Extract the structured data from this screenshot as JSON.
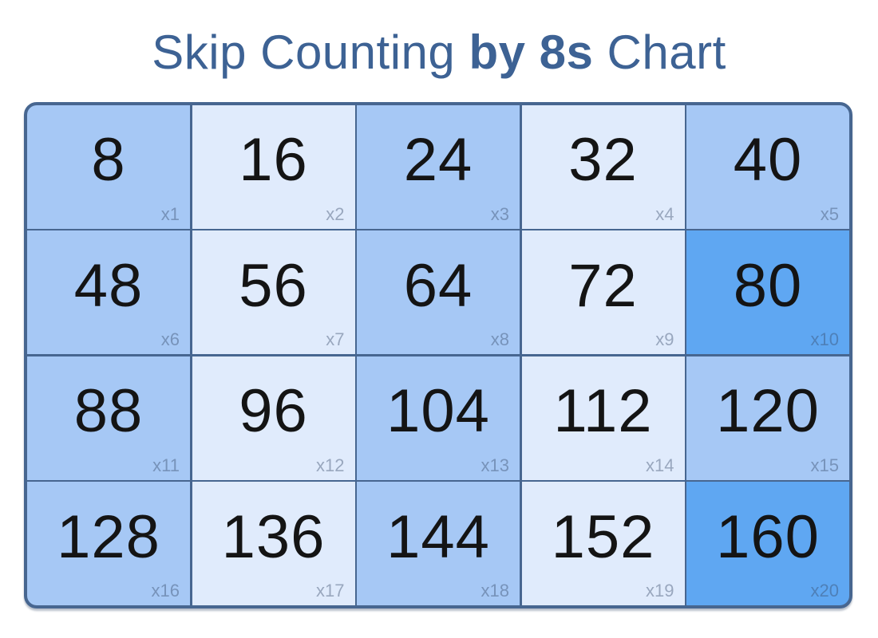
{
  "title": {
    "part1": "Skip Counting ",
    "part2": "by 8s",
    "part3": " Chart"
  },
  "colors": {
    "page_background": "#ffffff",
    "title_text": "#3d6294",
    "cell_medium": "#a6c8f5",
    "cell_light": "#e0ebfc",
    "cell_vivid": "#5fa7f2",
    "grid_border": "#476690",
    "number_text": "#141414",
    "multiplier_text": "rgba(55,75,105,0.42)"
  },
  "grid": {
    "rows": 4,
    "cols": 5,
    "cells": [
      {
        "value": "8",
        "multiplier": "x1",
        "shade": "medium"
      },
      {
        "value": "16",
        "multiplier": "x2",
        "shade": "light"
      },
      {
        "value": "24",
        "multiplier": "x3",
        "shade": "medium"
      },
      {
        "value": "32",
        "multiplier": "x4",
        "shade": "light"
      },
      {
        "value": "40",
        "multiplier": "x5",
        "shade": "medium"
      },
      {
        "value": "48",
        "multiplier": "x6",
        "shade": "medium"
      },
      {
        "value": "56",
        "multiplier": "x7",
        "shade": "light"
      },
      {
        "value": "64",
        "multiplier": "x8",
        "shade": "medium"
      },
      {
        "value": "72",
        "multiplier": "x9",
        "shade": "light"
      },
      {
        "value": "80",
        "multiplier": "x10",
        "shade": "vivid"
      },
      {
        "value": "88",
        "multiplier": "x11",
        "shade": "medium"
      },
      {
        "value": "96",
        "multiplier": "x12",
        "shade": "light"
      },
      {
        "value": "104",
        "multiplier": "x13",
        "shade": "medium"
      },
      {
        "value": "112",
        "multiplier": "x14",
        "shade": "light"
      },
      {
        "value": "120",
        "multiplier": "x15",
        "shade": "medium"
      },
      {
        "value": "128",
        "multiplier": "x16",
        "shade": "medium"
      },
      {
        "value": "136",
        "multiplier": "x17",
        "shade": "light"
      },
      {
        "value": "144",
        "multiplier": "x18",
        "shade": "medium"
      },
      {
        "value": "152",
        "multiplier": "x19",
        "shade": "light"
      },
      {
        "value": "160",
        "multiplier": "x20",
        "shade": "vivid"
      }
    ]
  },
  "chart_data": {
    "type": "table",
    "title": "Skip Counting by 8s Chart",
    "step": 8,
    "rows": 4,
    "cols": 5,
    "values": [
      8,
      16,
      24,
      32,
      40,
      48,
      56,
      64,
      72,
      80,
      88,
      96,
      104,
      112,
      120,
      128,
      136,
      144,
      152,
      160
    ],
    "multiplier_labels": [
      "x1",
      "x2",
      "x3",
      "x4",
      "x5",
      "x6",
      "x7",
      "x8",
      "x9",
      "x10",
      "x11",
      "x12",
      "x13",
      "x14",
      "x15",
      "x16",
      "x17",
      "x18",
      "x19",
      "x20"
    ],
    "highlighted_values": [
      80,
      160
    ]
  }
}
